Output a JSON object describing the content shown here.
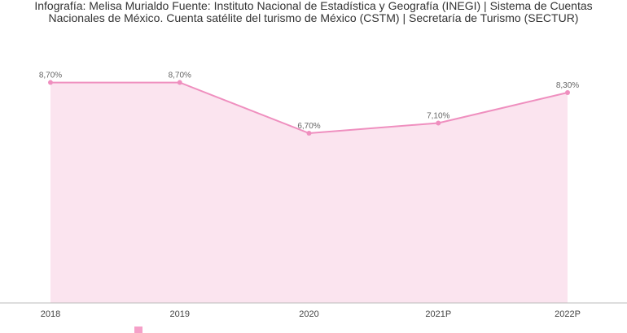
{
  "source": {
    "line1": "Infografía: Melisa Murialdo Fuente: Instituto Nacional de Estadística y Geografía (INEGI) | Sistema de Cuentas",
    "line2": "Nacionales de México. Cuenta satélite del turismo de México (CSTM) | Secretaría de Turismo (SECTUR)"
  },
  "chart_data": {
    "type": "area",
    "categories": [
      "2018",
      "2019",
      "2020",
      "2021P",
      "2022P"
    ],
    "series": [
      {
        "values": [
          8.7,
          8.7,
          6.7,
          7.1,
          8.3
        ],
        "data_labels": [
          "8,70%",
          "8,70%",
          "6,70%",
          "7,10%",
          "8,30%"
        ]
      }
    ],
    "ylim": [
      0,
      10
    ],
    "grid": false,
    "legend_position": "bottom",
    "colors": {
      "line": "#ef8fbf",
      "fill": "#fbe4ef",
      "axis": "#bbbbbb",
      "text": "#666666"
    }
  }
}
